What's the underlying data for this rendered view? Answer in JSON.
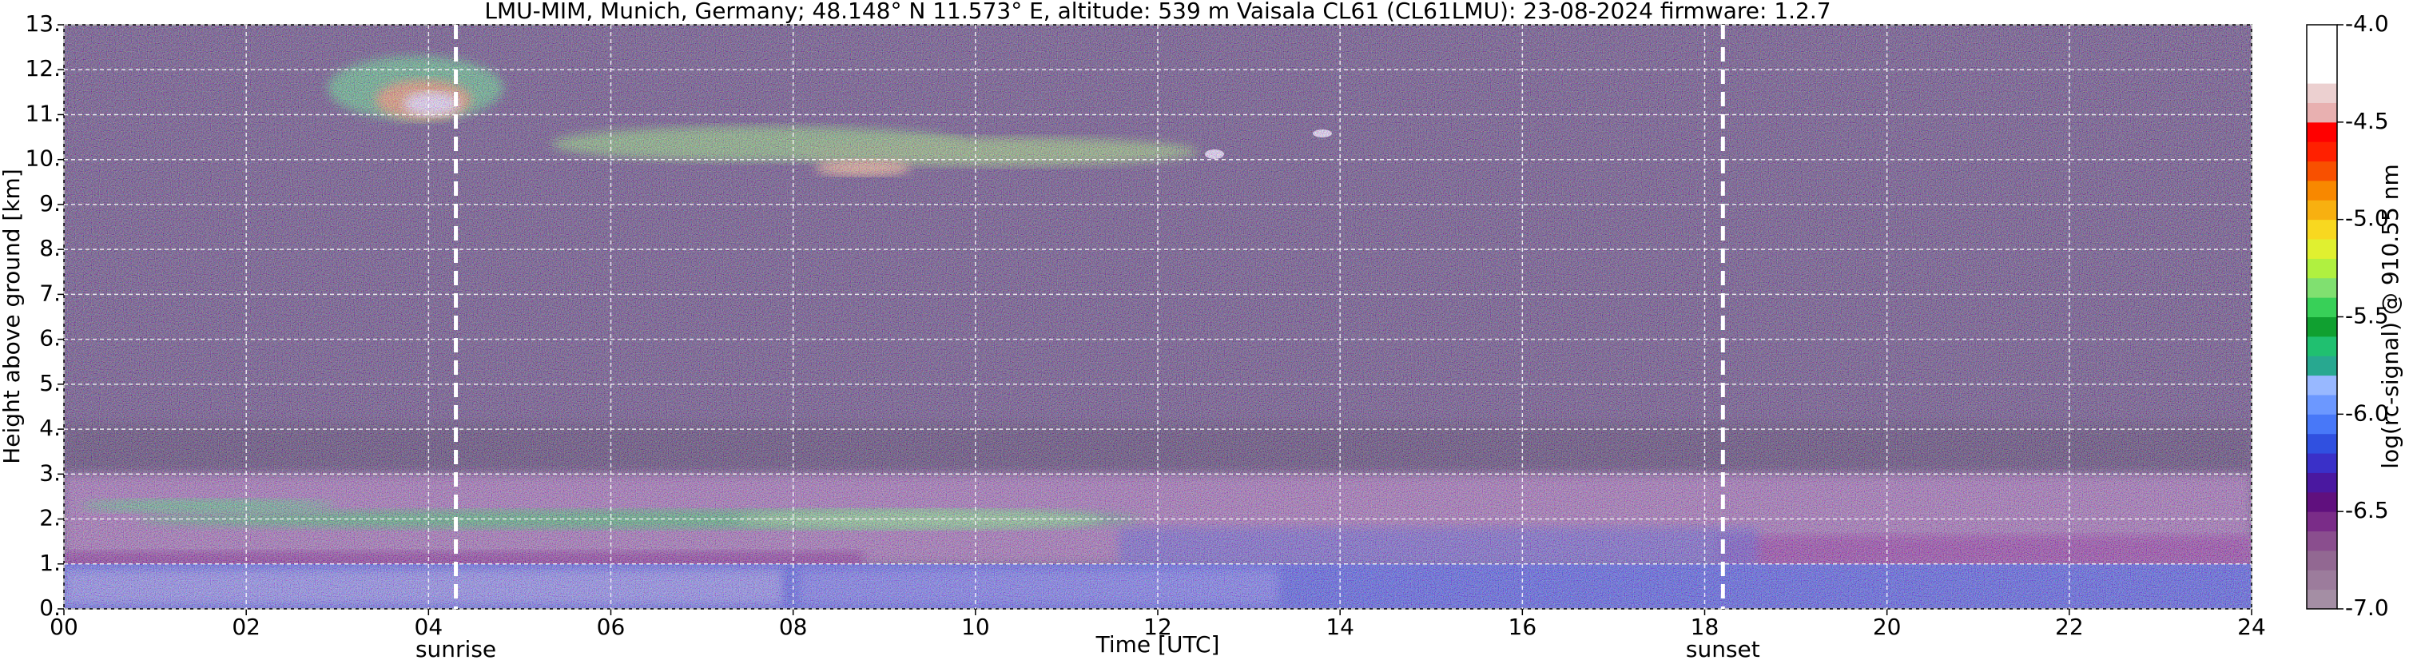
{
  "chart_data": {
    "type": "heatmap",
    "title": "LMU-MIM, Munich, Germany; 48.148° N 11.573° E, altitude: 539 m    Vaisala CL61 (CL61LMU): 23-08-2024    firmware: 1.2.7",
    "xlabel": "Time [UTC]",
    "ylabel": "Height above ground [km]",
    "xlim": [
      0,
      24
    ],
    "xticks": [
      {
        "value": 0,
        "label": "00"
      },
      {
        "value": 2,
        "label": "02"
      },
      {
        "value": 4,
        "label": "04"
      },
      {
        "value": 6,
        "label": "06"
      },
      {
        "value": 8,
        "label": "08"
      },
      10,
      12,
      14,
      16,
      18,
      20,
      22,
      24
    ],
    "ylim": [
      0,
      13
    ],
    "yticks": [
      {
        "value": 0,
        "label": "0."
      },
      {
        "value": 1,
        "label": "1."
      },
      {
        "value": 2,
        "label": "2."
      },
      {
        "value": 3,
        "label": "3."
      },
      {
        "value": 4,
        "label": "4."
      },
      {
        "value": 5,
        "label": "5."
      },
      {
        "value": 6,
        "label": "6."
      },
      {
        "value": 7,
        "label": "7."
      },
      {
        "value": 8,
        "label": "8."
      },
      {
        "value": 9,
        "label": "9."
      },
      {
        "value": 10,
        "label": "10."
      },
      {
        "value": 11,
        "label": "11."
      },
      {
        "value": 12,
        "label": "12."
      },
      {
        "value": 13,
        "label": "13."
      }
    ],
    "grid": true,
    "colorbar_label": "log(rc-signal) @ 910.55 nm",
    "clim": [
      -7,
      -4
    ],
    "cticks": [
      {
        "value": -7,
        "label": "-7.0"
      },
      -6.5,
      {
        "value": -6,
        "label": "-6.0"
      },
      -5.5,
      {
        "value": -5,
        "label": "-5.0"
      },
      -4.5,
      {
        "value": -4,
        "label": "-4.0"
      }
    ],
    "colorbar_colors": [
      "#a48ea4",
      "#9c7c9c",
      "#926892",
      "#8a4e8e",
      "#7a2c88",
      "#60107e",
      "#4a18a0",
      "#3a30c8",
      "#3050e0",
      "#4878f8",
      "#6c98ff",
      "#98b8ff",
      "#28a890",
      "#20c070",
      "#10a030",
      "#38d058",
      "#80e070",
      "#b0f040",
      "#e0f030",
      "#f8d820",
      "#f8b010",
      "#f88800",
      "#f85000",
      "#ff2000",
      "#ff0000",
      "#e8b0b0",
      "#ecd0d0",
      "#ffffff",
      "#ffffff",
      "#ffffff"
    ],
    "annotations": [
      {
        "text": "sunrise",
        "x": 4.3
      },
      {
        "text": "sunset",
        "x": 18.2
      }
    ]
  }
}
